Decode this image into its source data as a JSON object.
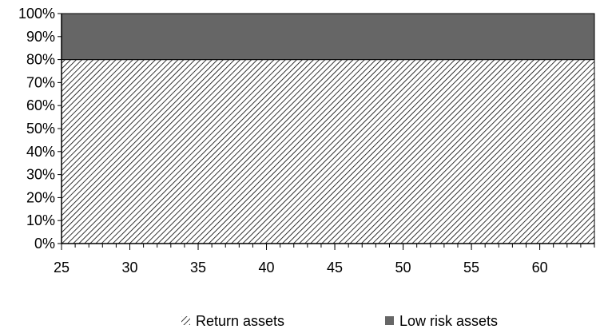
{
  "chart_data": {
    "type": "area",
    "stacked_percent": true,
    "x": [
      25,
      64
    ],
    "xlim": [
      25,
      64
    ],
    "xticks": [
      25,
      30,
      35,
      40,
      45,
      50,
      55,
      60
    ],
    "x_minor_step": 1,
    "ylim": [
      0,
      100
    ],
    "yticks": [
      0,
      10,
      20,
      30,
      40,
      50,
      60,
      70,
      80,
      90,
      100
    ],
    "y_tick_suffix": "%",
    "series": [
      {
        "name": "Return assets",
        "values": [
          80,
          80
        ],
        "fill": "hatch",
        "color": "#000000"
      },
      {
        "name": "Low risk assets",
        "values": [
          20,
          20
        ],
        "fill": "solid",
        "color": "#666666"
      }
    ],
    "title": "",
    "xlabel": "",
    "ylabel": "",
    "grid": false,
    "legend_position": "bottom"
  }
}
